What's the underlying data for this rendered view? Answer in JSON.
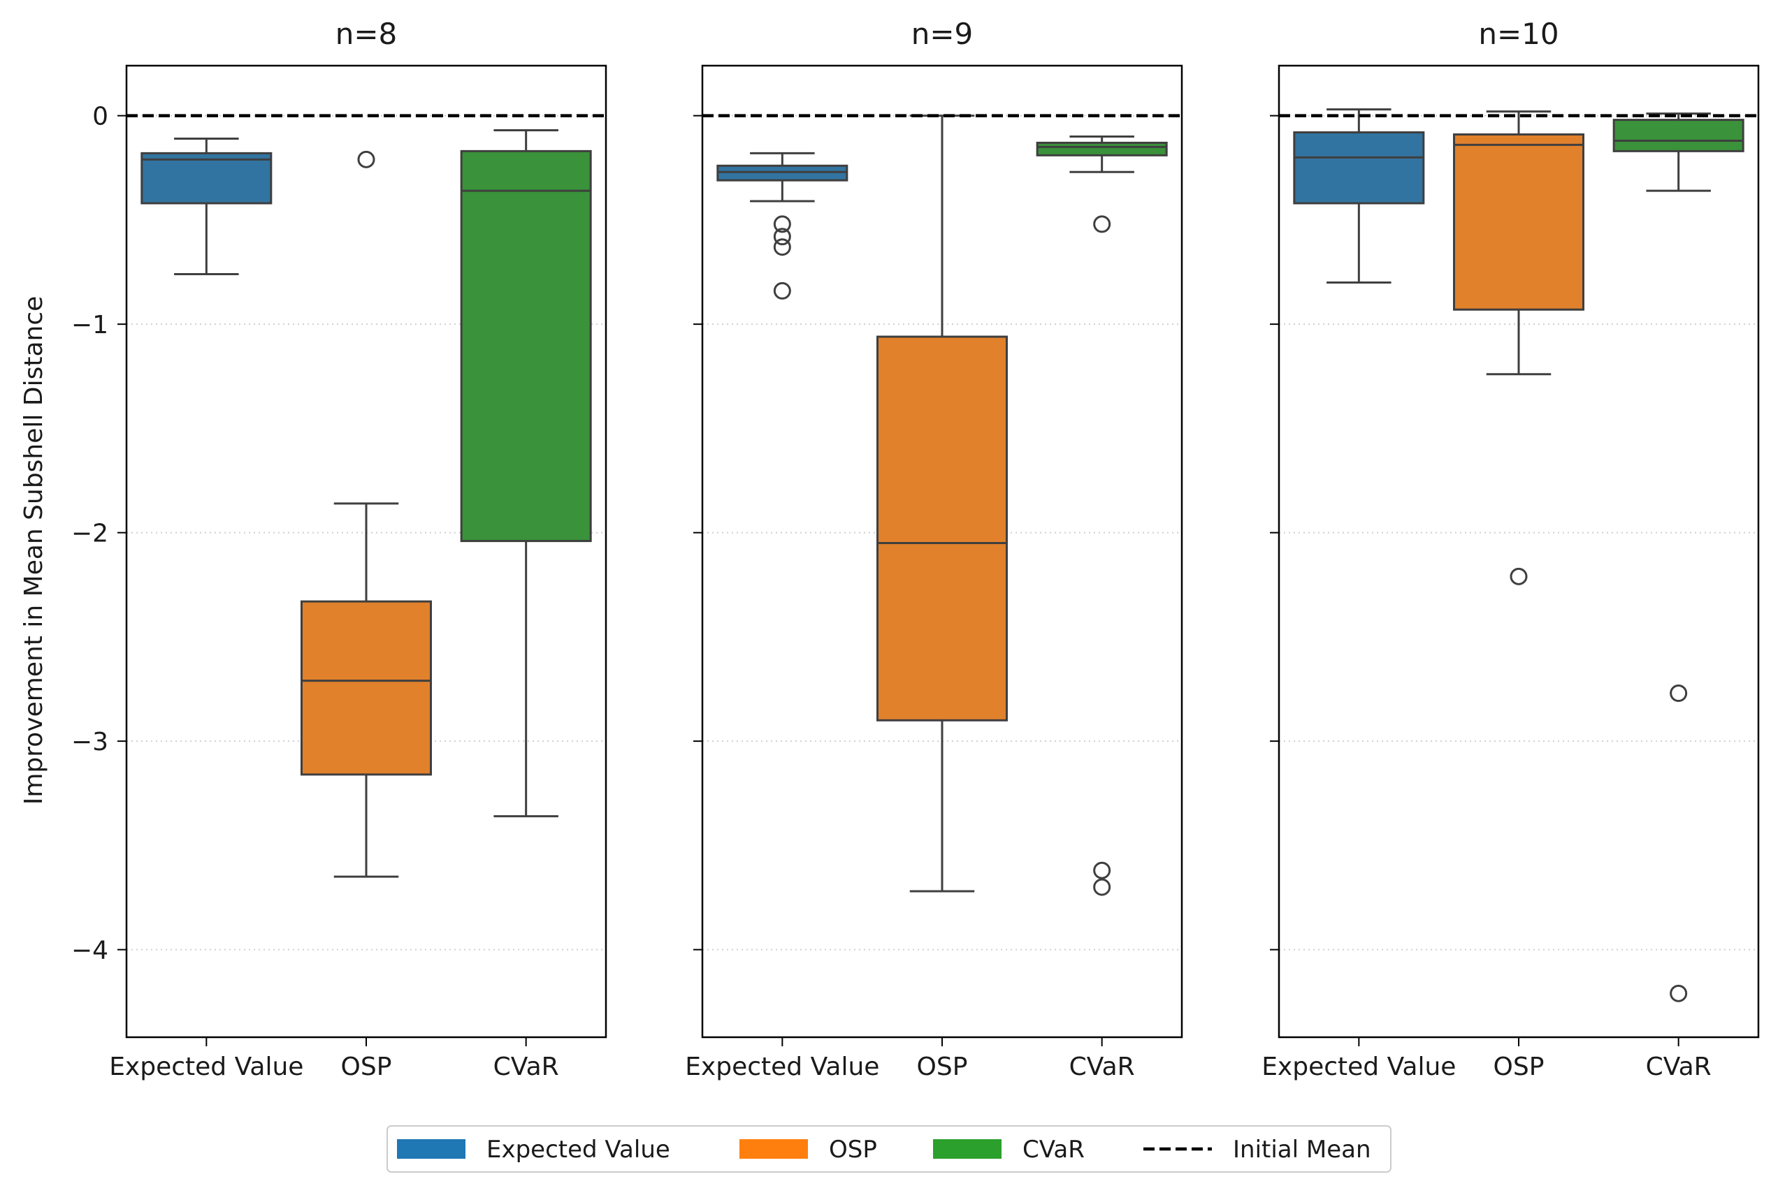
{
  "chart_data": {
    "type": "box",
    "ylabel": "Improvement in Mean Subshell Distance",
    "ylim": [
      -4.42,
      0.24
    ],
    "yticks": [
      0,
      -1,
      -2,
      -3,
      -4
    ],
    "ytick_labels": [
      "0",
      "−1",
      "−2",
      "−3",
      "−4"
    ],
    "grid": "horizontal dotted",
    "reference_line": {
      "label": "Initial Mean",
      "y": 0,
      "style": "dashed",
      "color": "#000000"
    },
    "categories": [
      "Expected Value",
      "OSP",
      "CVaR"
    ],
    "colors": {
      "Expected Value": "#3274a1",
      "OSP": "#e1812c",
      "CVaR": "#3a923a"
    },
    "legend_colors": {
      "Expected Value": "#1f77b4",
      "OSP": "#ff7f0e",
      "CVaR": "#2ca02c"
    },
    "legend": {
      "position": "bottom-center",
      "entries": [
        "Expected Value",
        "OSP",
        "CVaR",
        "Initial Mean"
      ]
    },
    "panels": [
      {
        "title": "n=8",
        "boxes": [
          {
            "name": "Expected Value",
            "whislo": -0.76,
            "q1": -0.42,
            "med": -0.21,
            "q3": -0.18,
            "whishi": -0.11,
            "fliers": []
          },
          {
            "name": "OSP",
            "whislo": -3.65,
            "q1": -3.16,
            "med": -2.71,
            "q3": -2.33,
            "whishi": -1.86,
            "fliers": [
              -0.21
            ]
          },
          {
            "name": "CVaR",
            "whislo": -3.36,
            "q1": -2.04,
            "med": -0.36,
            "q3": -0.17,
            "whishi": -0.07,
            "fliers": []
          }
        ]
      },
      {
        "title": "n=9",
        "boxes": [
          {
            "name": "Expected Value",
            "whislo": -0.41,
            "q1": -0.31,
            "med": -0.27,
            "q3": -0.24,
            "whishi": -0.18,
            "fliers": [
              -0.52,
              -0.58,
              -0.63,
              -0.84
            ]
          },
          {
            "name": "OSP",
            "whislo": -3.72,
            "q1": -2.9,
            "med": -2.05,
            "q3": -1.06,
            "whishi": 0.0,
            "fliers": []
          },
          {
            "name": "CVaR",
            "whislo": -0.27,
            "q1": -0.19,
            "med": -0.15,
            "q3": -0.13,
            "whishi": -0.1,
            "fliers": [
              -0.52,
              -3.62,
              -3.7
            ]
          }
        ]
      },
      {
        "title": "n=10",
        "boxes": [
          {
            "name": "Expected Value",
            "whislo": -0.8,
            "q1": -0.42,
            "med": -0.2,
            "q3": -0.08,
            "whishi": 0.03,
            "fliers": []
          },
          {
            "name": "OSP",
            "whislo": -1.24,
            "q1": -0.93,
            "med": -0.14,
            "q3": -0.09,
            "whishi": 0.02,
            "fliers": [
              -2.21
            ]
          },
          {
            "name": "CVaR",
            "whislo": -0.36,
            "q1": -0.17,
            "med": -0.12,
            "q3": -0.02,
            "whishi": 0.01,
            "fliers": [
              -2.77,
              -4.21
            ]
          }
        ]
      }
    ]
  }
}
